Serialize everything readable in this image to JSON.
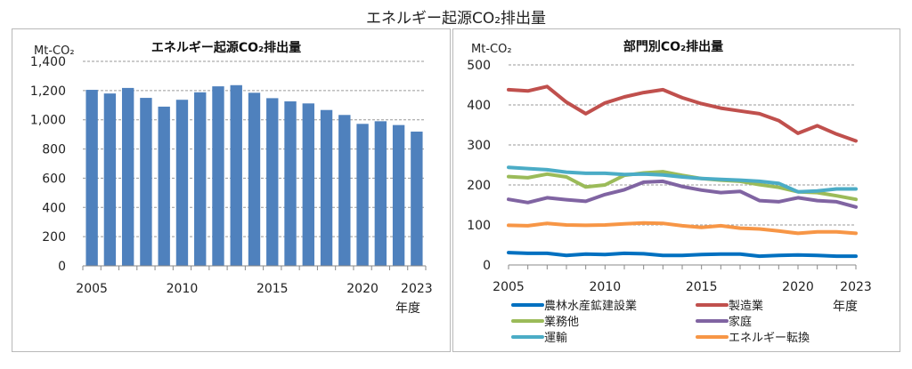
{
  "page_title": "エネルギー起源CO₂排出量",
  "chart_data": [
    {
      "type": "bar",
      "title": "エネルギー起源CO₂排出量",
      "ylabel": "Mt-CO₂",
      "xlabel": "年度",
      "ylim": [
        0,
        1400
      ],
      "yticks": [
        "0",
        "200",
        "400",
        "600",
        "800",
        "1,000",
        "1,200",
        "1,400"
      ],
      "ytick_values": [
        0,
        200,
        400,
        600,
        800,
        1000,
        1200,
        1400
      ],
      "xtick_labels": [
        "2005",
        "2010",
        "2015",
        "2020",
        "2023"
      ],
      "grid": true,
      "bar_color": "#4f81bd",
      "categories": [
        2005,
        2006,
        2007,
        2008,
        2009,
        2010,
        2011,
        2012,
        2013,
        2014,
        2015,
        2016,
        2017,
        2018,
        2019,
        2020,
        2021,
        2022,
        2023
      ],
      "values": [
        1205,
        1180,
        1218,
        1150,
        1090,
        1137,
        1188,
        1229,
        1237,
        1185,
        1148,
        1126,
        1112,
        1067,
        1033,
        972,
        990,
        964,
        919
      ]
    },
    {
      "type": "line",
      "title": "部門別CO₂排出量",
      "ylabel": "Mt-CO₂",
      "xlabel": "年度",
      "ylim": [
        0,
        500
      ],
      "yticks": [
        "0",
        "100",
        "200",
        "300",
        "400",
        "500"
      ],
      "ytick_values": [
        0,
        100,
        200,
        300,
        400,
        500
      ],
      "xtick_labels": [
        "2005",
        "2010",
        "2015",
        "2020",
        "2023"
      ],
      "grid": true,
      "legend_position": "bottom",
      "x": [
        2005,
        2006,
        2007,
        2008,
        2009,
        2010,
        2011,
        2012,
        2013,
        2014,
        2015,
        2016,
        2017,
        2018,
        2019,
        2020,
        2021,
        2022,
        2023
      ],
      "series": [
        {
          "name": "農林水産鉱建設業",
          "color": "#0070c0",
          "values": [
            31,
            29,
            29,
            24,
            27,
            26,
            29,
            28,
            24,
            24,
            26,
            27,
            27,
            22,
            24,
            25,
            24,
            22,
            22
          ]
        },
        {
          "name": "製造業",
          "color": "#c0504d",
          "values": [
            438,
            435,
            446,
            407,
            378,
            405,
            420,
            431,
            438,
            418,
            403,
            392,
            385,
            378,
            361,
            329,
            348,
            327,
            310
          ]
        },
        {
          "name": "業務他",
          "color": "#9bbb59",
          "values": [
            221,
            218,
            227,
            220,
            195,
            200,
            224,
            230,
            233,
            224,
            216,
            212,
            209,
            201,
            194,
            183,
            181,
            173,
            164
          ]
        },
        {
          "name": "家庭",
          "color": "#8064a2",
          "values": [
            164,
            156,
            168,
            163,
            159,
            176,
            188,
            207,
            209,
            196,
            187,
            181,
            184,
            161,
            158,
            168,
            161,
            158,
            145
          ]
        },
        {
          "name": "運輸",
          "color": "#4bacc6",
          "values": [
            244,
            241,
            238,
            232,
            229,
            229,
            226,
            227,
            225,
            220,
            216,
            214,
            212,
            209,
            204,
            183,
            185,
            190,
            190
          ]
        },
        {
          "name": "エネルギー転換",
          "color": "#f79646",
          "values": [
            99,
            98,
            104,
            100,
            99,
            100,
            103,
            105,
            104,
            98,
            94,
            98,
            92,
            90,
            85,
            79,
            83,
            83,
            79
          ]
        }
      ]
    }
  ]
}
